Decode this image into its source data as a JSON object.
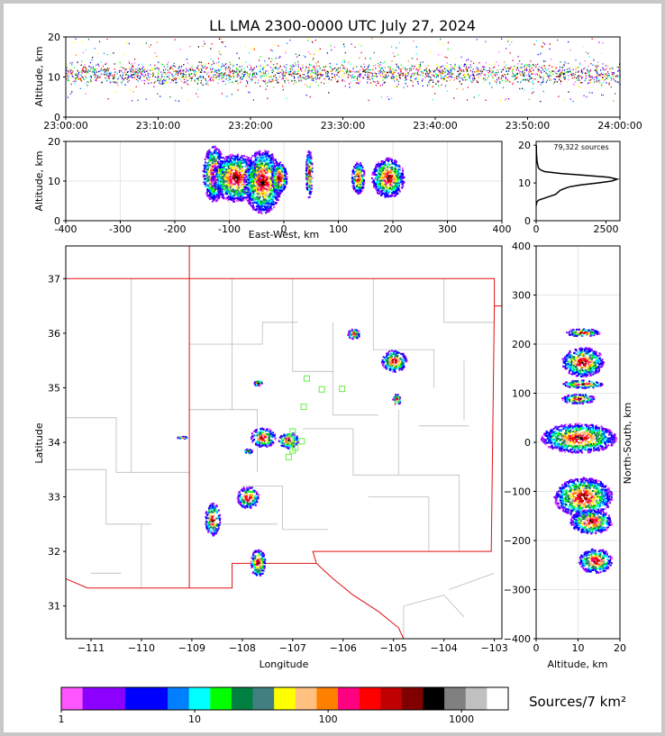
{
  "title": "LL LMA 2300-0000 UTC July 27, 2024",
  "colorbar_label": "Sources/7 km²",
  "colorbar": {
    "colors": [
      "#ff55ff",
      "#8c00ff",
      "#8c00ff",
      "#0000ff",
      "#0000ff",
      "#0080ff",
      "#00ffff",
      "#00ff00",
      "#008040",
      "#408080",
      "#ffff00",
      "#ffc080",
      "#ff8000",
      "#ff0080",
      "#ff0000",
      "#c00000",
      "#800000",
      "#000000",
      "#808080",
      "#c0c0c0",
      "#ffffff"
    ],
    "ticks": [
      {
        "label": "1",
        "value": 1
      },
      {
        "label": "10",
        "value": 10
      },
      {
        "label": "100",
        "value": 100
      },
      {
        "label": "1000",
        "value": 1000
      }
    ]
  },
  "chart_data": [
    {
      "type": "heatmap",
      "name": "time-height",
      "xlabel": "",
      "ylabel": "Altitude, km",
      "xlim": [
        "23:00:00",
        "24:00:00"
      ],
      "ylim": [
        0,
        20
      ],
      "xticks": [
        "23:00:00",
        "23:10:00",
        "23:20:00",
        "23:30:00",
        "23:40:00",
        "23:50:00",
        "24:00:00"
      ],
      "yticks": [
        0,
        10,
        20
      ],
      "band_km": [
        5,
        17
      ],
      "core_km": [
        8,
        13
      ]
    },
    {
      "type": "heatmap",
      "name": "east-west-altitude",
      "xlabel": "East-West, km",
      "ylabel": "Altitude, km",
      "xlim": [
        -400,
        400
      ],
      "ylim": [
        0,
        20
      ],
      "xticks": [
        -400,
        -300,
        -200,
        -100,
        0,
        100,
        200,
        300,
        400
      ],
      "yticks": [
        0,
        10,
        20
      ],
      "clusters": [
        {
          "x": -130,
          "z": 12,
          "w": 20,
          "h": 7
        },
        {
          "x": -90,
          "z": 11,
          "w": 45,
          "h": 6
        },
        {
          "x": -40,
          "z": 10,
          "w": 35,
          "h": 8
        },
        {
          "x": -10,
          "z": 11,
          "w": 15,
          "h": 4
        },
        {
          "x": 45,
          "z": 12,
          "w": 6,
          "h": 6
        },
        {
          "x": 135,
          "z": 11,
          "w": 12,
          "h": 4
        },
        {
          "x": 190,
          "z": 11,
          "w": 30,
          "h": 5
        }
      ]
    },
    {
      "type": "line",
      "name": "altitude-histogram",
      "annotation": "79,322 sources",
      "xlim": [
        0,
        3000
      ],
      "ylim": [
        0,
        21
      ],
      "xticks": [
        0,
        2500
      ],
      "yticks": [
        0,
        10,
        20
      ],
      "x": [
        0,
        30,
        100,
        300,
        500,
        700,
        850,
        1000,
        1200,
        1600,
        2200,
        2700,
        2900,
        2600,
        1800,
        900,
        300,
        150,
        80,
        50,
        30,
        10,
        5
      ],
      "y": [
        4,
        5,
        5.5,
        6,
        6.5,
        7,
        8,
        8.5,
        9,
        9.5,
        10,
        10.5,
        11,
        11.5,
        12,
        12.5,
        13,
        13.5,
        14,
        15,
        16,
        18,
        20
      ]
    },
    {
      "type": "heatmap",
      "name": "plan-view",
      "xlabel": "Longitude",
      "ylabel": "Latitude",
      "xlim": [
        -111.5,
        -102.85
      ],
      "ylim": [
        30.4,
        37.6
      ],
      "xticks": [
        -111,
        -110,
        -109,
        -108,
        -107,
        -106,
        -105,
        -104,
        -103
      ],
      "yticks": [
        31,
        32,
        33,
        34,
        35,
        36,
        37
      ],
      "clusters": [
        {
          "lon": -105.0,
          "lat": 35.5,
          "rw": 0.25,
          "rh": 0.2
        },
        {
          "lon": -105.8,
          "lat": 36.0,
          "rw": 0.12,
          "rh": 0.1
        },
        {
          "lon": -104.95,
          "lat": 34.8,
          "rw": 0.08,
          "rh": 0.1
        },
        {
          "lon": -107.6,
          "lat": 34.1,
          "rw": 0.25,
          "rh": 0.18
        },
        {
          "lon": -107.1,
          "lat": 34.05,
          "rw": 0.2,
          "rh": 0.15
        },
        {
          "lon": -107.9,
          "lat": 33.0,
          "rw": 0.22,
          "rh": 0.2
        },
        {
          "lon": -108.6,
          "lat": 32.6,
          "rw": 0.15,
          "rh": 0.3
        },
        {
          "lon": -107.7,
          "lat": 31.8,
          "rw": 0.15,
          "rh": 0.25
        },
        {
          "lon": -107.7,
          "lat": 35.1,
          "rw": 0.08,
          "rh": 0.05
        },
        {
          "lon": -109.2,
          "lat": 34.1,
          "rw": 0.1,
          "rh": 0.02
        },
        {
          "lon": -107.9,
          "lat": 33.85,
          "rw": 0.08,
          "rh": 0.04
        }
      ],
      "stations": [
        [
          -106.72,
          35.17
        ],
        [
          -106.42,
          34.97
        ],
        [
          -106.02,
          34.98
        ],
        [
          -106.78,
          34.65
        ],
        [
          -107.0,
          34.2
        ],
        [
          -107.05,
          34.05
        ],
        [
          -106.82,
          34.02
        ],
        [
          -107.0,
          33.85
        ],
        [
          -107.08,
          33.73
        ],
        [
          -106.95,
          33.9
        ]
      ]
    },
    {
      "type": "heatmap",
      "name": "altitude-north-south",
      "xlabel": "Altitude, km",
      "ylabel": "North-South, km",
      "xlim": [
        0,
        20
      ],
      "ylim": [
        -400,
        400
      ],
      "xticks": [
        0,
        10,
        20
      ],
      "yticks": [
        -400,
        -300,
        -200,
        -100,
        0,
        100,
        200,
        300,
        400
      ],
      "clusters": [
        {
          "z": 11,
          "y": 225,
          "w": 4,
          "h": 8
        },
        {
          "z": 11,
          "y": 165,
          "w": 5,
          "h": 30
        },
        {
          "z": 11,
          "y": 120,
          "w": 5,
          "h": 8
        },
        {
          "z": 10,
          "y": 90,
          "w": 4,
          "h": 10
        },
        {
          "z": 10,
          "y": 10,
          "w": 9,
          "h": 30
        },
        {
          "z": 11,
          "y": -110,
          "w": 7,
          "h": 40
        },
        {
          "z": 13,
          "y": -160,
          "w": 5,
          "h": 25
        },
        {
          "z": 14,
          "y": -240,
          "w": 4,
          "h": 25
        }
      ]
    }
  ]
}
